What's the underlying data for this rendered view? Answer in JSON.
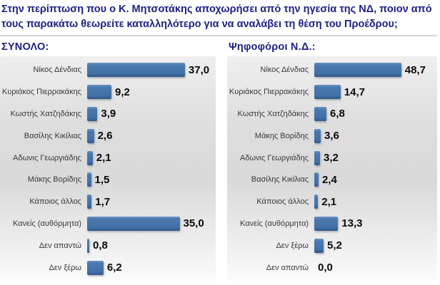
{
  "page": {
    "question": "Στην περίπτωση που ο Κ. Μητσοτάκης αποχωρήσει από την ηγεσία της ΝΔ, ποιον από τους παρακάτω θεωρείτε καταλληλότερο για να αναλάβει τη θέση του Προέδρου;"
  },
  "colors": {
    "title_text": "#1e1f82",
    "bar_fill": "#4372a9",
    "label_text": "#383838",
    "value_text": "#0a0a0a",
    "panel_background": "#dedede"
  },
  "chart_data": [
    {
      "type": "bar",
      "orientation": "horizontal",
      "title": "ΣΥΝΟΛΟ:",
      "categories": [
        "Νίκος Δένδιας",
        "Κυριάκος Πιερρακάκης",
        "Κωστής Χατζηδάκης",
        "Βασίλης Κικίλιας",
        "Αδωνις Γεωργιάδης",
        "Μάκης Βορίδης",
        "Κάποιος άλλος",
        "Κανείς (αυθόρμητα)",
        "Δεν απαντώ",
        "Δεν ξέρω"
      ],
      "values": [
        37.0,
        9.2,
        3.9,
        2.6,
        2.1,
        1.5,
        1.7,
        35.0,
        0.8,
        6.2
      ],
      "value_labels": [
        "37,0",
        "9,2",
        "3,9",
        "2,6",
        "2,1",
        "1,5",
        "1,7",
        "35,0",
        "0,8",
        "6,2"
      ],
      "xlim": [
        0,
        40
      ],
      "grid": false,
      "legend": false
    },
    {
      "type": "bar",
      "orientation": "horizontal",
      "title": "Ψηφοφόροι Ν.Δ.:",
      "categories": [
        "Νίκος Δένδιας",
        "Κυριάκος Πιερρακάκης",
        "Κωστής Χατζηδάκης",
        "Μάκης Βορίδης",
        "Αδωνις Γεωργιάδης",
        "Βασίλης Κικίλιας",
        "Κάποιος άλλος",
        "Κανείς (αυθόρμητα)",
        "Δεν ξέρω",
        "Δεν απαντώ"
      ],
      "values": [
        48.7,
        14.7,
        6.8,
        3.6,
        3.2,
        2.4,
        2.1,
        13.3,
        5.2,
        0.0
      ],
      "value_labels": [
        "48,7",
        "14,7",
        "6,8",
        "3,6",
        "3,2",
        "2,4",
        "2,1",
        "13,3",
        "5,2",
        "0,0"
      ],
      "xlim": [
        0,
        52
      ],
      "grid": false,
      "legend": false
    }
  ]
}
